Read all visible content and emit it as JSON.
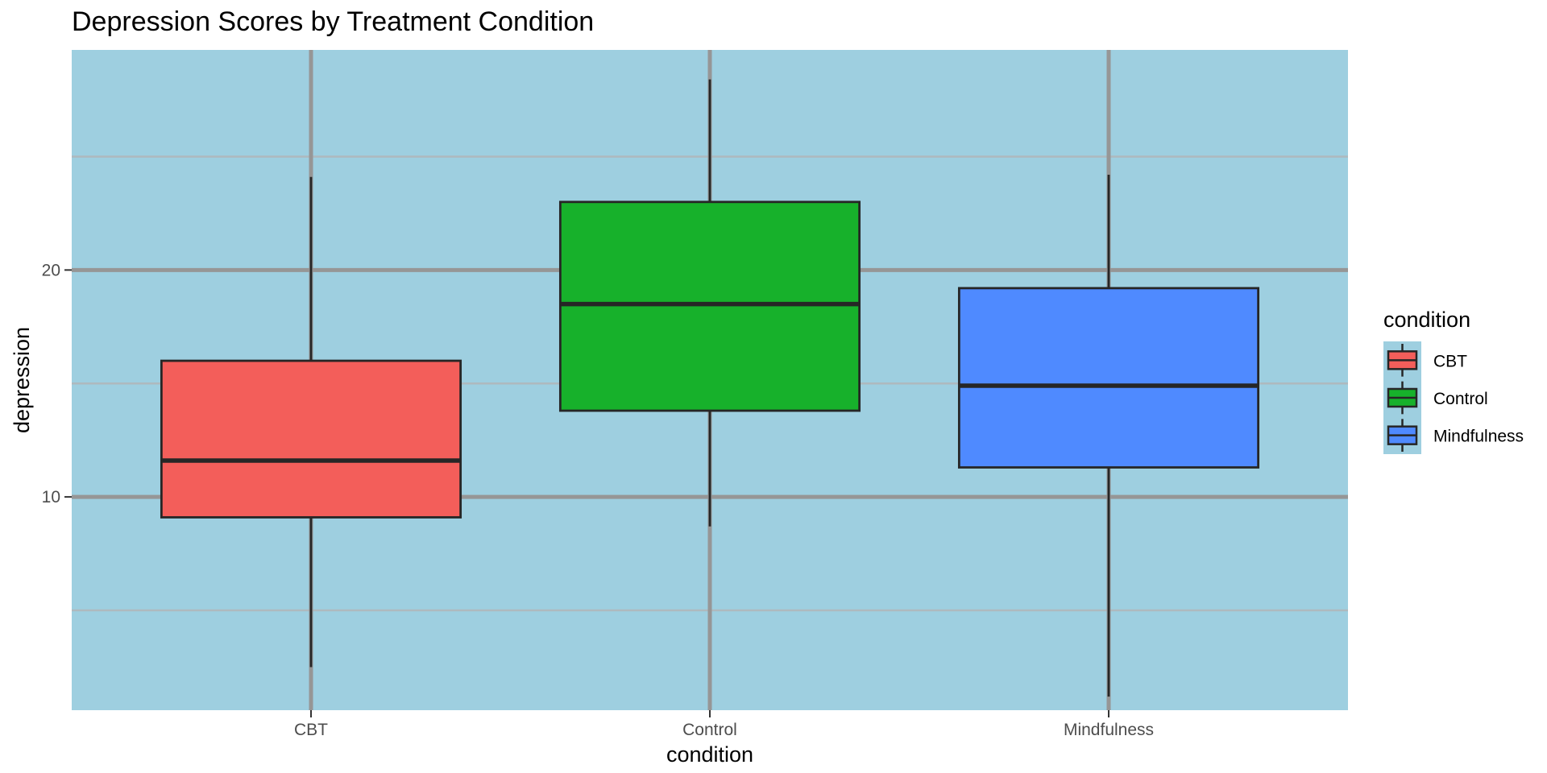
{
  "chart_data": {
    "type": "boxplot",
    "title": "Depression Scores by Treatment Condition",
    "xlabel": "condition",
    "ylabel": "depression",
    "categories": [
      "CBT",
      "Control",
      "Mindfulness"
    ],
    "y_ticks": [
      10,
      20
    ],
    "ylim": [
      0.6,
      29.7
    ],
    "grid": true,
    "legend": {
      "title": "condition",
      "position": "right"
    },
    "series": [
      {
        "name": "CBT",
        "color": "#F35E5A",
        "whisker_low": 2.5,
        "q1": 9.1,
        "median": 11.6,
        "q3": 16.0,
        "whisker_high": 24.1
      },
      {
        "name": "Control",
        "color": "#17B12B",
        "whisker_low": 8.7,
        "q1": 13.8,
        "median": 18.5,
        "q3": 23.0,
        "whisker_high": 28.4
      },
      {
        "name": "Mindfulness",
        "color": "#4F8AFF",
        "whisker_low": 1.2,
        "q1": 11.3,
        "median": 14.9,
        "q3": 19.2,
        "whisker_high": 24.2
      }
    ],
    "colors": {
      "panel_background": "#9ECFE0",
      "grid_major": "#969696",
      "grid_minor": "#AEB9BE",
      "outline": "#262626"
    }
  }
}
